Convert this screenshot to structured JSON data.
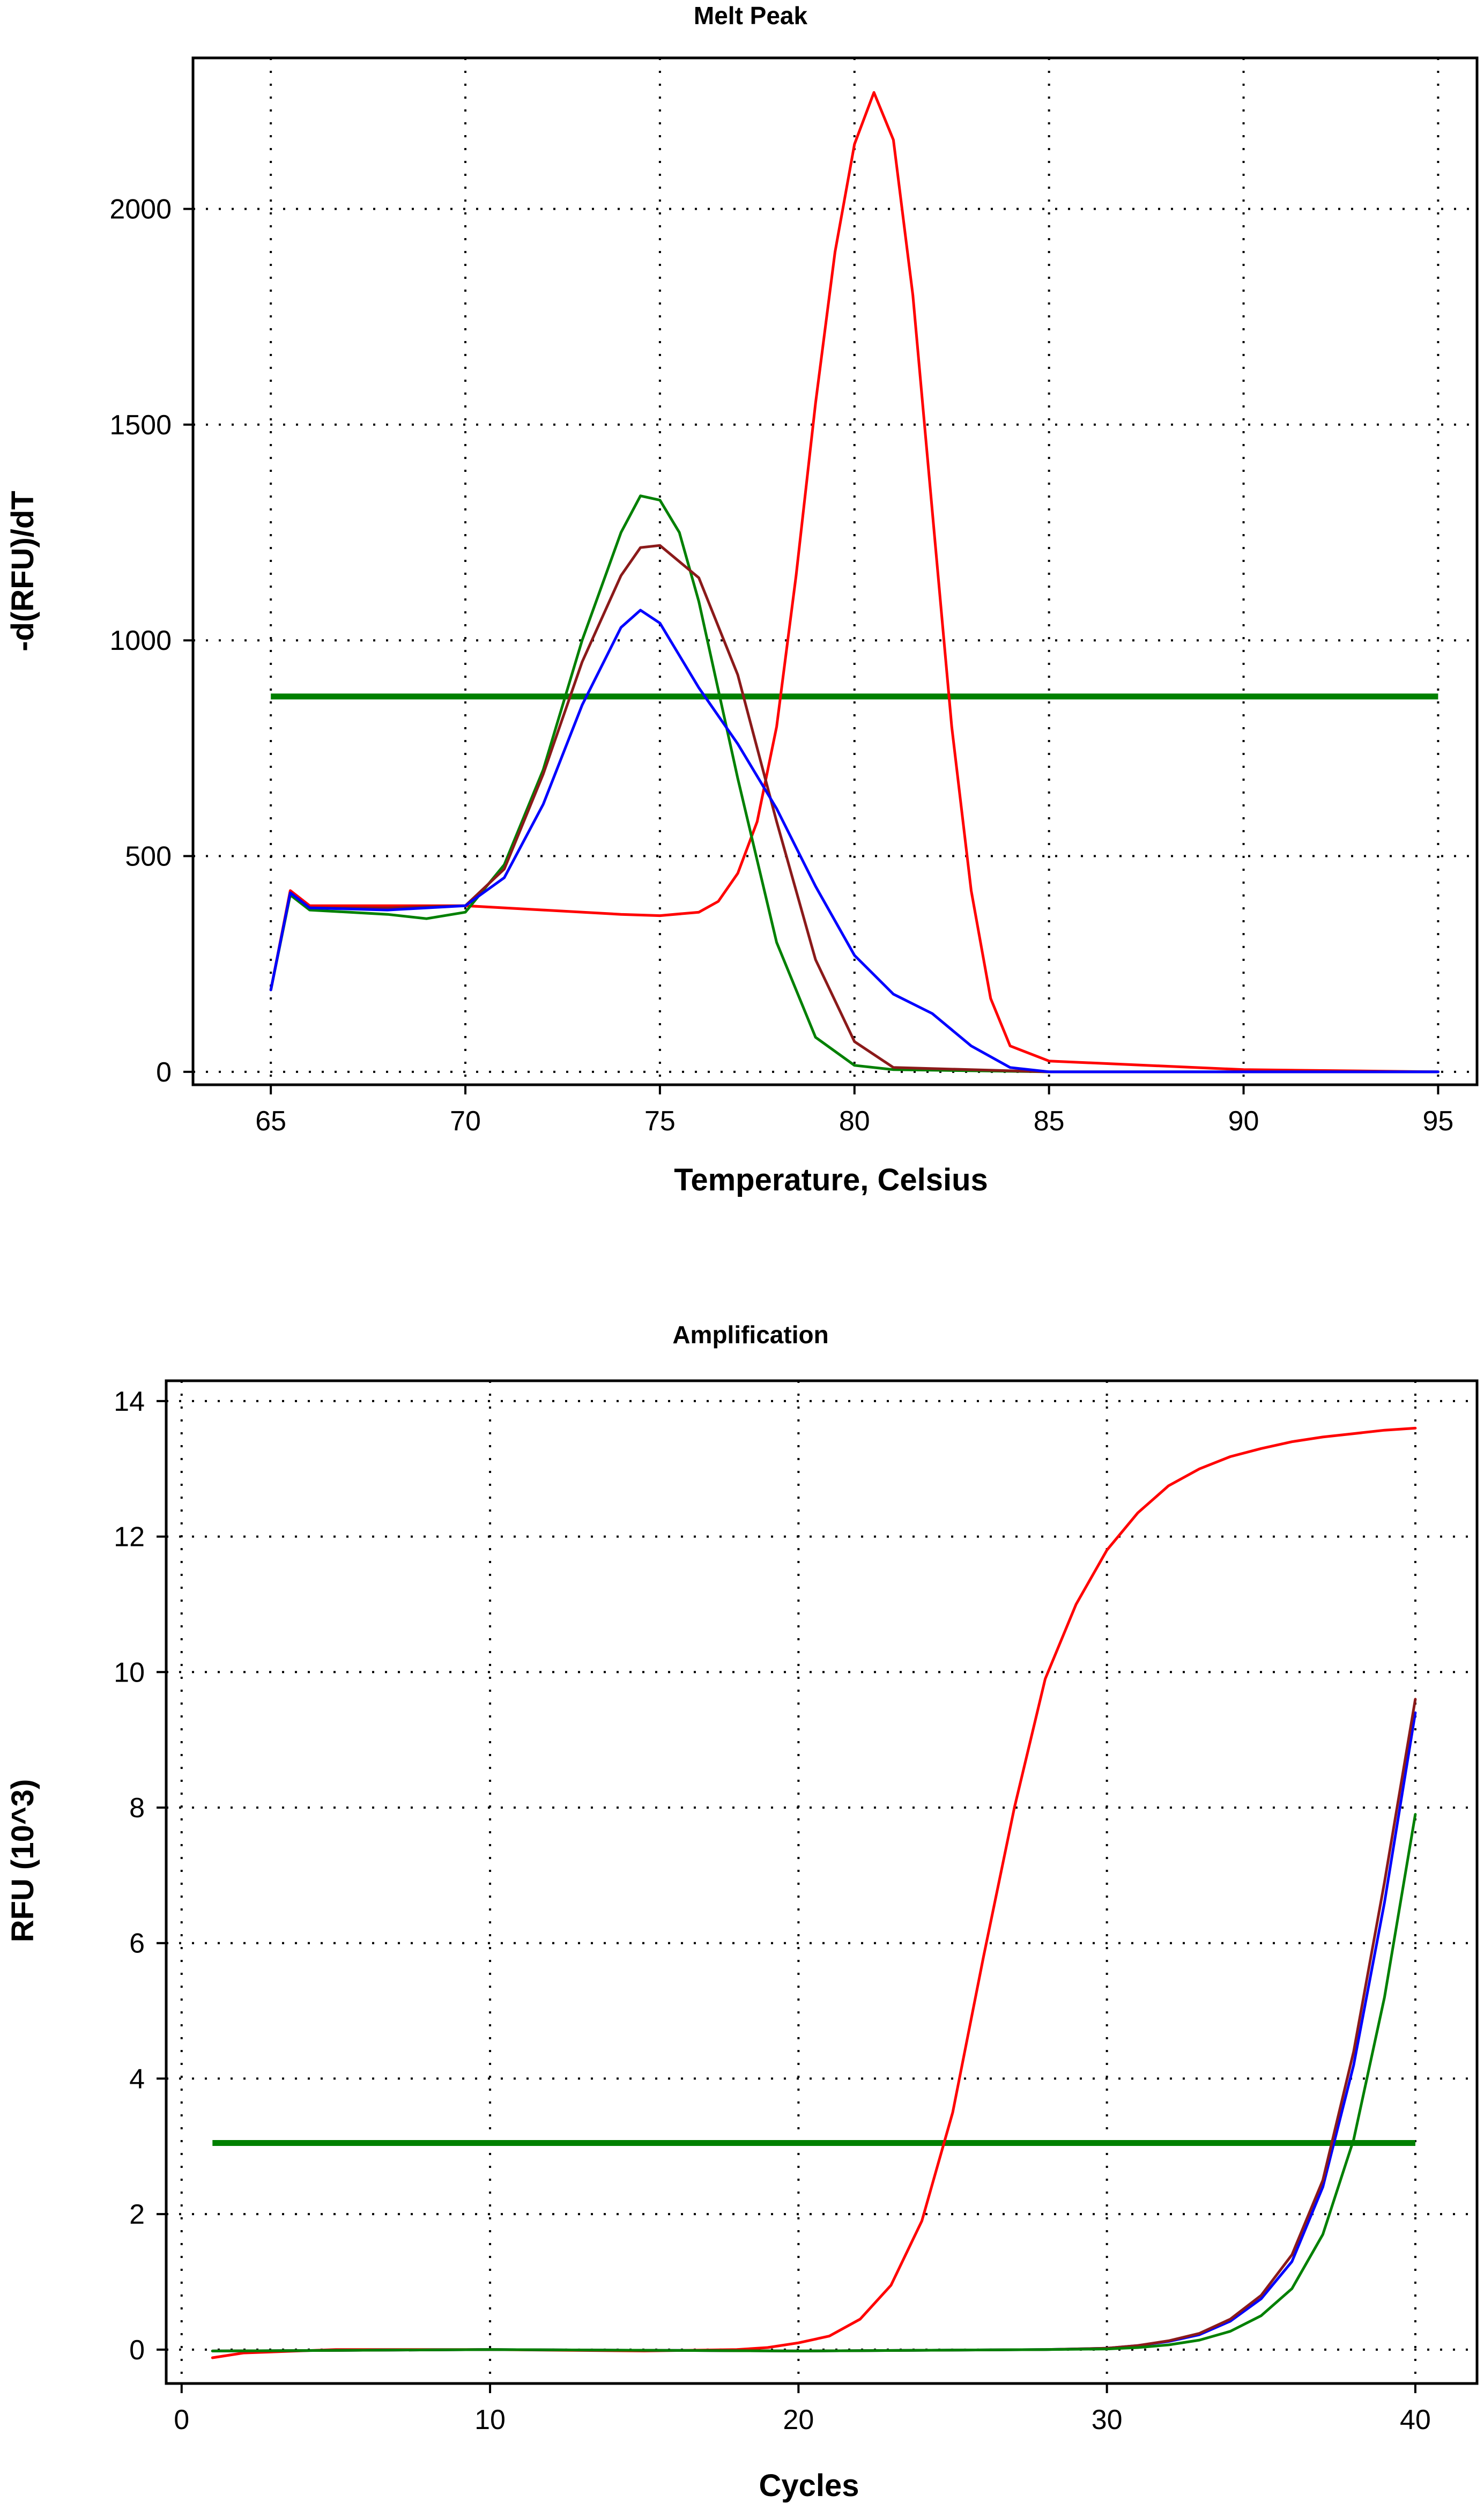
{
  "chart_data": [
    {
      "type": "line",
      "title": "Melt Peak",
      "xlabel": "Temperature, Celsius",
      "ylabel": "-d(RFU)/dT",
      "xlim": [
        63,
        96
      ],
      "ylim": [
        -30,
        2350
      ],
      "xticks": [
        65,
        70,
        75,
        80,
        85,
        90,
        95
      ],
      "yticks": [
        0,
        500,
        1000,
        1500,
        2000
      ],
      "grid": true,
      "threshold": {
        "value": 870,
        "x_range": [
          65,
          95
        ],
        "color": "#008000"
      },
      "series": [
        {
          "name": "red",
          "color": "#ff0000",
          "x": [
            65,
            65.5,
            66,
            68,
            70,
            72,
            74,
            75,
            76,
            76.5,
            77,
            77.5,
            78,
            78.5,
            79,
            79.5,
            80,
            80.5,
            81,
            81.5,
            82,
            82.5,
            83,
            83.5,
            84,
            85,
            90,
            95
          ],
          "y": [
            190,
            420,
            385,
            385,
            385,
            375,
            365,
            362,
            370,
            395,
            460,
            580,
            800,
            1150,
            1550,
            1900,
            2150,
            2270,
            2160,
            1800,
            1300,
            800,
            420,
            170,
            60,
            25,
            5,
            0
          ]
        },
        {
          "name": "green",
          "color": "#008000",
          "x": [
            65,
            65.5,
            66,
            68,
            69,
            70,
            71,
            72,
            73,
            74,
            74.5,
            75,
            75.5,
            76,
            77,
            78,
            79,
            80,
            81,
            85,
            95
          ],
          "y": [
            190,
            410,
            375,
            365,
            355,
            370,
            480,
            700,
            1000,
            1250,
            1335,
            1325,
            1250,
            1090,
            680,
            300,
            80,
            15,
            5,
            0,
            0
          ]
        },
        {
          "name": "darkred",
          "color": "#8b1a1a",
          "x": [
            65,
            65.5,
            66,
            68,
            70,
            71,
            72,
            73,
            74,
            74.5,
            75,
            76,
            77,
            78,
            79,
            80,
            81,
            85,
            95
          ],
          "y": [
            190,
            415,
            380,
            380,
            385,
            470,
            690,
            950,
            1150,
            1215,
            1220,
            1145,
            920,
            580,
            260,
            70,
            10,
            0,
            0
          ]
        },
        {
          "name": "blue",
          "color": "#0000ff",
          "x": [
            65,
            65.5,
            66,
            68,
            70,
            71,
            72,
            73,
            74,
            74.5,
            75,
            76,
            77,
            78,
            79,
            80,
            81,
            82,
            83,
            84,
            85,
            95
          ],
          "y": [
            190,
            415,
            380,
            375,
            385,
            450,
            620,
            850,
            1030,
            1070,
            1040,
            890,
            760,
            610,
            430,
            270,
            180,
            135,
            60,
            10,
            0,
            0
          ]
        }
      ]
    },
    {
      "type": "line",
      "title": "Amplification",
      "xlabel": "Cycles",
      "ylabel": "RFU (10^3)",
      "xlim": [
        -0.5,
        42
      ],
      "ylim": [
        -0.5,
        14.3
      ],
      "xticks": [
        0,
        10,
        20,
        30,
        40
      ],
      "yticks": [
        0,
        2,
        4,
        6,
        8,
        10,
        12,
        14
      ],
      "grid": true,
      "threshold": {
        "value": 3.05,
        "x_range": [
          1,
          40
        ],
        "color": "#008000"
      },
      "series": [
        {
          "name": "red",
          "color": "#ff0000",
          "x": [
            1,
            2,
            5,
            10,
            15,
            18,
            19,
            20,
            21,
            22,
            23,
            24,
            25,
            26,
            27,
            28,
            29,
            30,
            31,
            32,
            33,
            34,
            35,
            36,
            37,
            38,
            39,
            40
          ],
          "y": [
            -0.12,
            -0.05,
            0.0,
            0.0,
            -0.02,
            0.0,
            0.03,
            0.1,
            0.2,
            0.45,
            0.95,
            1.9,
            3.5,
            5.8,
            8.0,
            9.9,
            11.0,
            11.8,
            12.35,
            12.75,
            13.0,
            13.18,
            13.3,
            13.4,
            13.47,
            13.52,
            13.57,
            13.6
          ]
        },
        {
          "name": "blue",
          "color": "#0000ff",
          "x": [
            1,
            10,
            20,
            28,
            30,
            31,
            32,
            33,
            34,
            35,
            36,
            37,
            38,
            39,
            40
          ],
          "y": [
            -0.02,
            0.0,
            -0.02,
            0.0,
            0.02,
            0.06,
            0.12,
            0.22,
            0.42,
            0.75,
            1.3,
            2.4,
            4.2,
            6.6,
            9.4
          ]
        },
        {
          "name": "darkred",
          "color": "#8b1a1a",
          "x": [
            1,
            10,
            20,
            28,
            30,
            31,
            32,
            33,
            34,
            35,
            36,
            37,
            38,
            39,
            40
          ],
          "y": [
            -0.02,
            0.0,
            -0.02,
            0.0,
            0.02,
            0.06,
            0.13,
            0.24,
            0.45,
            0.8,
            1.4,
            2.5,
            4.4,
            6.9,
            9.6
          ]
        },
        {
          "name": "green",
          "color": "#008000",
          "x": [
            1,
            10,
            20,
            28,
            30,
            31,
            32,
            33,
            34,
            35,
            36,
            37,
            38,
            39,
            40
          ],
          "y": [
            -0.02,
            0.0,
            -0.02,
            0.0,
            0.01,
            0.03,
            0.07,
            0.14,
            0.27,
            0.5,
            0.9,
            1.7,
            3.1,
            5.2,
            7.9
          ]
        }
      ]
    }
  ]
}
